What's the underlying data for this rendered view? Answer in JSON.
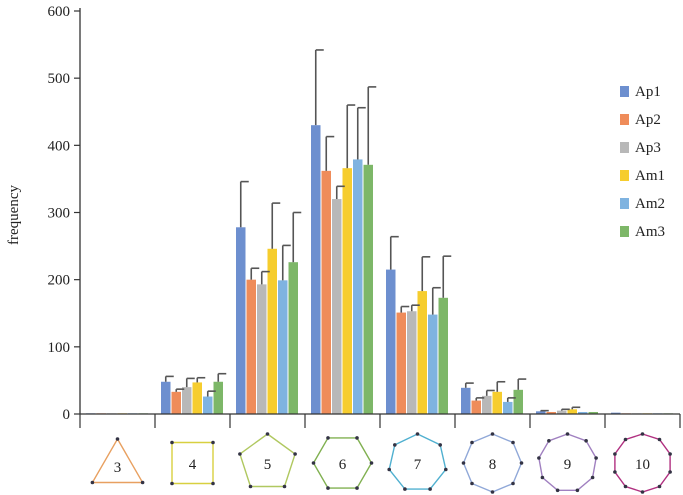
{
  "chart_data": {
    "type": "bar",
    "title": "",
    "ylabel": "frequency",
    "xlabel": "",
    "ylim": [
      0,
      600
    ],
    "yticks": [
      0,
      100,
      200,
      300,
      400,
      500,
      600
    ],
    "categories": [
      "3",
      "4",
      "5",
      "6",
      "7",
      "8",
      "9",
      "10"
    ],
    "category_shapes": [
      {
        "sides": 3,
        "color": "#e8a060"
      },
      {
        "sides": 4,
        "color": "#d8d040"
      },
      {
        "sides": 5,
        "color": "#b0c860"
      },
      {
        "sides": 6,
        "color": "#80b050"
      },
      {
        "sides": 7,
        "color": "#50b0d0"
      },
      {
        "sides": 8,
        "color": "#90a8d8"
      },
      {
        "sides": 9,
        "color": "#a080c0"
      },
      {
        "sides": 10,
        "color": "#b03080"
      }
    ],
    "legend_position": "right",
    "grid": false,
    "series": [
      {
        "name": "Ap1",
        "color": "#6d8fcf",
        "values": [
          1,
          48,
          278,
          430,
          215,
          39,
          4,
          2
        ],
        "errors": [
          0.5,
          8,
          68,
          112,
          49,
          7,
          1,
          1
        ]
      },
      {
        "name": "Ap2",
        "color": "#ef8c5a",
        "values": [
          1,
          33,
          200,
          362,
          151,
          20,
          3,
          1
        ],
        "errors": [
          0.5,
          4,
          17,
          51,
          9,
          4,
          1,
          1
        ]
      },
      {
        "name": "Ap3",
        "color": "#b8b8b8",
        "values": [
          1,
          40,
          193,
          320,
          153,
          27,
          5,
          1
        ],
        "errors": [
          0.5,
          13,
          19,
          19,
          9,
          8,
          2,
          1
        ]
      },
      {
        "name": "Am1",
        "color": "#f6cd2e",
        "values": [
          1,
          47,
          246,
          366,
          183,
          33,
          7,
          1
        ],
        "errors": [
          0.5,
          7,
          68,
          94,
          51,
          15,
          3,
          1
        ]
      },
      {
        "name": "Am2",
        "color": "#7fb3e0",
        "values": [
          1,
          26,
          199,
          379,
          148,
          18,
          3,
          1
        ],
        "errors": [
          0.5,
          8,
          52,
          77,
          40,
          6,
          1,
          1
        ]
      },
      {
        "name": "Am3",
        "color": "#7db768",
        "values": [
          1,
          48,
          226,
          371,
          173,
          36,
          3,
          1
        ],
        "errors": [
          0.5,
          12,
          74,
          116,
          62,
          16,
          2,
          1
        ]
      }
    ]
  }
}
